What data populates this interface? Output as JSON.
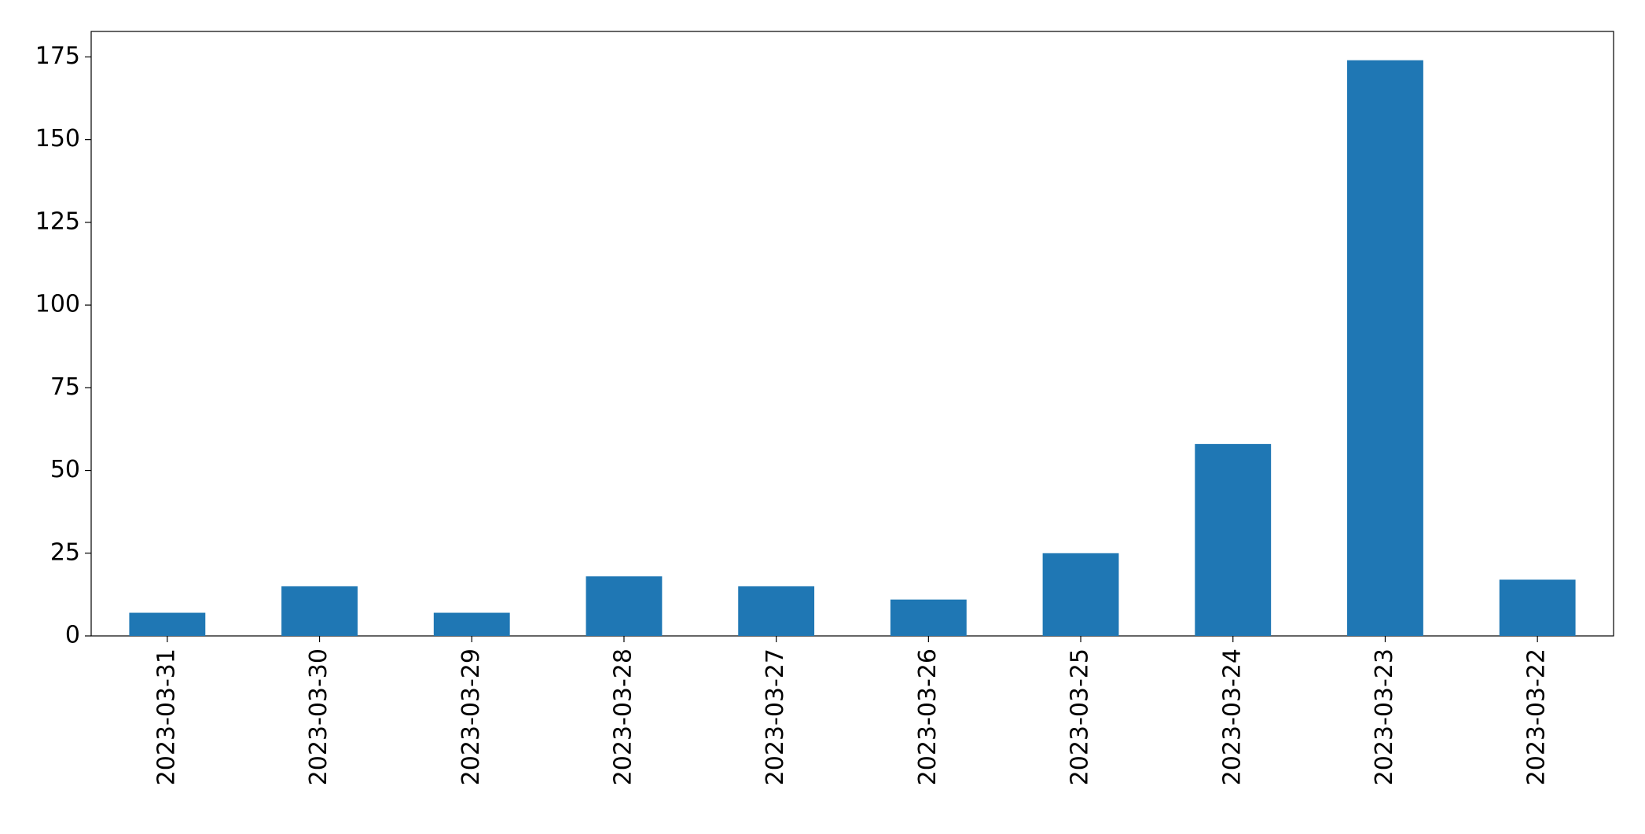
{
  "chart_data": {
    "type": "bar",
    "categories": [
      "2023-03-31",
      "2023-03-30",
      "2023-03-29",
      "2023-03-28",
      "2023-03-27",
      "2023-03-26",
      "2023-03-25",
      "2023-03-24",
      "2023-03-23",
      "2023-03-22"
    ],
    "values": [
      7,
      15,
      7,
      18,
      15,
      11,
      25,
      58,
      174,
      17
    ],
    "color": "#1f77b4",
    "ylim": [
      0,
      182.7
    ],
    "yticks": [
      0,
      25,
      50,
      75,
      100,
      125,
      150,
      175
    ],
    "grid": false
  }
}
